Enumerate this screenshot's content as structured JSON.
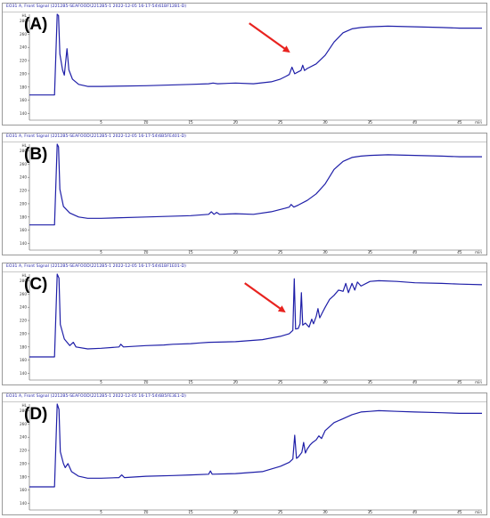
{
  "panels": [
    {
      "letter": "(A)",
      "header": "EO31 A, Front Signal (2212B5-SEAFOOD\\2212B5-1 2022-12-05 16-17-54\\61BF12B1-D)"
    },
    {
      "letter": "(B)",
      "header": "EO31 A, Front Signal (2212B5-SEAFOOD\\2212B5-1 2022-12-05 16-17-54\\6B5FE401-D)"
    },
    {
      "letter": "(C)",
      "header": "EO31 A, Front Signal (2212B5-SEAFOOD\\2212B5-1 2022-12-05 16-17-54\\61BF1E01-D)"
    },
    {
      "letter": "(D)",
      "header": "EO31 A, Front Signal (2212B5-SEAFOOD\\2212B5-1 2022-12-05 16-17-54\\6B5FE3E1-D)"
    }
  ],
  "colors": {
    "trace": "#1f1fa8",
    "arrow": "#e8231f",
    "axis": "#555555"
  },
  "chart_data": [
    {
      "type": "line",
      "panel": "(A)",
      "y_unit_label": "HL",
      "x_unit_label": "min",
      "xlim": [
        -3,
        47.5
      ],
      "ylim": [
        130,
        290
      ],
      "x_ticks": [
        5,
        10,
        15,
        20,
        25,
        30,
        35,
        40,
        45
      ],
      "y_ticks": [
        140,
        160,
        180,
        200,
        220,
        240,
        260,
        280
      ],
      "annotation": {
        "type": "arrow",
        "color": "red",
        "points_to_x": 26.3
      },
      "series": [
        {
          "points": [
            [
              -3.0,
              168
            ],
            [
              -0.2,
              168
            ],
            [
              0.1,
              290
            ],
            [
              0.25,
              288
            ],
            [
              0.4,
              230
            ],
            [
              0.7,
              206
            ],
            [
              0.9,
              198
            ],
            [
              1.2,
              238
            ],
            [
              1.4,
              206
            ],
            [
              1.8,
              192
            ],
            [
              2.5,
              184
            ],
            [
              3.5,
              181
            ],
            [
              5,
              181
            ],
            [
              10,
              182
            ],
            [
              15,
              184
            ],
            [
              17,
              185
            ],
            [
              17.5,
              186
            ],
            [
              18,
              185
            ],
            [
              20,
              186
            ],
            [
              22,
              185
            ],
            [
              24,
              188
            ],
            [
              25,
              192
            ],
            [
              25.6,
              196
            ],
            [
              26.0,
              199
            ],
            [
              26.3,
              210
            ],
            [
              26.6,
              200
            ],
            [
              27.0,
              203
            ],
            [
              27.3,
              205
            ],
            [
              27.5,
              213
            ],
            [
              27.7,
              205
            ],
            [
              28,
              208
            ],
            [
              29,
              215
            ],
            [
              30,
              228
            ],
            [
              31,
              248
            ],
            [
              32,
              262
            ],
            [
              33,
              268
            ],
            [
              34,
              270
            ],
            [
              35,
              271
            ],
            [
              37,
              272
            ],
            [
              40,
              271
            ],
            [
              43,
              270
            ],
            [
              45,
              269
            ],
            [
              47.5,
              269
            ]
          ]
        }
      ]
    },
    {
      "type": "line",
      "panel": "(B)",
      "y_unit_label": "HL",
      "x_unit_label": "min",
      "xlim": [
        -3,
        47.5
      ],
      "ylim": [
        130,
        290
      ],
      "x_ticks": [
        5,
        10,
        15,
        20,
        25,
        30,
        35,
        40,
        45
      ],
      "y_ticks": [
        140,
        160,
        180,
        200,
        220,
        240,
        260,
        280
      ],
      "series": [
        {
          "points": [
            [
              -3.0,
              168
            ],
            [
              -0.2,
              168
            ],
            [
              0.1,
              290
            ],
            [
              0.25,
              286
            ],
            [
              0.4,
              222
            ],
            [
              0.8,
              196
            ],
            [
              1.5,
              186
            ],
            [
              2.5,
              180
            ],
            [
              3.5,
              178
            ],
            [
              5,
              178
            ],
            [
              10,
              180
            ],
            [
              15,
              182
            ],
            [
              17,
              184
            ],
            [
              17.3,
              188
            ],
            [
              17.6,
              184
            ],
            [
              17.9,
              187
            ],
            [
              18.2,
              184
            ],
            [
              20,
              185
            ],
            [
              22,
              184
            ],
            [
              24,
              188
            ],
            [
              25.5,
              193
            ],
            [
              26,
              195
            ],
            [
              26.2,
              199
            ],
            [
              26.5,
              195
            ],
            [
              27,
              198
            ],
            [
              28,
              205
            ],
            [
              29,
              215
            ],
            [
              30,
              230
            ],
            [
              31,
              252
            ],
            [
              32,
              264
            ],
            [
              33,
              270
            ],
            [
              34,
              272
            ],
            [
              35,
              273
            ],
            [
              37,
              274
            ],
            [
              40,
              273
            ],
            [
              43,
              272
            ],
            [
              45,
              271
            ],
            [
              47.5,
              271
            ]
          ]
        }
      ]
    },
    {
      "type": "line",
      "panel": "(C)",
      "y_unit_label": "HL",
      "x_unit_label": "min",
      "xlim": [
        -3,
        47.5
      ],
      "ylim": [
        130,
        290
      ],
      "x_ticks": [
        5,
        10,
        15,
        20,
        25,
        30,
        35,
        40,
        45
      ],
      "y_ticks": [
        140,
        160,
        180,
        200,
        220,
        240,
        260,
        280
      ],
      "annotation": {
        "type": "arrow",
        "color": "red",
        "points_to_x": 25.8
      },
      "series": [
        {
          "points": [
            [
              -3.0,
              165
            ],
            [
              -0.2,
              165
            ],
            [
              0.1,
              290
            ],
            [
              0.3,
              284
            ],
            [
              0.45,
              214
            ],
            [
              0.9,
              192
            ],
            [
              1.5,
              182
            ],
            [
              1.9,
              187
            ],
            [
              2.2,
              180
            ],
            [
              3.5,
              177
            ],
            [
              5,
              178
            ],
            [
              7,
              180
            ],
            [
              7.2,
              184
            ],
            [
              7.5,
              180
            ],
            [
              10,
              182
            ],
            [
              12,
              183
            ],
            [
              13,
              184
            ],
            [
              15,
              185
            ],
            [
              16,
              186
            ],
            [
              17,
              187
            ],
            [
              20,
              188
            ],
            [
              23,
              191
            ],
            [
              25,
              196
            ],
            [
              26,
              200
            ],
            [
              26.4,
              205
            ],
            [
              26.55,
              283
            ],
            [
              26.7,
              207
            ],
            [
              27,
              208
            ],
            [
              27.2,
              215
            ],
            [
              27.35,
              262
            ],
            [
              27.5,
              213
            ],
            [
              27.8,
              216
            ],
            [
              28.2,
              210
            ],
            [
              28.5,
              222
            ],
            [
              28.7,
              215
            ],
            [
              29,
              226
            ],
            [
              29.2,
              238
            ],
            [
              29.4,
              224
            ],
            [
              29.7,
              232
            ],
            [
              30,
              240
            ],
            [
              30.5,
              252
            ],
            [
              31,
              258
            ],
            [
              31.5,
              266
            ],
            [
              32,
              264
            ],
            [
              32.3,
              276
            ],
            [
              32.6,
              262
            ],
            [
              33,
              276
            ],
            [
              33.3,
              266
            ],
            [
              33.6,
              278
            ],
            [
              34,
              272
            ],
            [
              35,
              279
            ],
            [
              36,
              280
            ],
            [
              38,
              279
            ],
            [
              40,
              277
            ],
            [
              43,
              276
            ],
            [
              45,
              275
            ],
            [
              47.5,
              274
            ]
          ]
        }
      ]
    },
    {
      "type": "line",
      "panel": "(D)",
      "y_unit_label": "HL",
      "x_unit_label": "min",
      "xlim": [
        -3,
        47.5
      ],
      "ylim": [
        130,
        290
      ],
      "x_ticks": [
        5,
        10,
        15,
        20,
        25,
        30,
        35,
        40,
        45
      ],
      "y_ticks": [
        140,
        160,
        180,
        200,
        220,
        240,
        260,
        280
      ],
      "series": [
        {
          "points": [
            [
              -3.0,
              165
            ],
            [
              -0.2,
              165
            ],
            [
              0.1,
              290
            ],
            [
              0.3,
              282
            ],
            [
              0.45,
              218
            ],
            [
              0.8,
              200
            ],
            [
              1.0,
              194
            ],
            [
              1.3,
              200
            ],
            [
              1.7,
              188
            ],
            [
              2.5,
              181
            ],
            [
              3.5,
              178
            ],
            [
              5,
              178
            ],
            [
              7,
              179
            ],
            [
              7.3,
              183
            ],
            [
              7.6,
              179
            ],
            [
              10,
              181
            ],
            [
              13,
              182
            ],
            [
              15,
              183
            ],
            [
              17,
              184
            ],
            [
              17.2,
              189
            ],
            [
              17.4,
              184
            ],
            [
              20,
              185
            ],
            [
              23,
              188
            ],
            [
              25,
              196
            ],
            [
              26,
              202
            ],
            [
              26.4,
              207
            ],
            [
              26.6,
              243
            ],
            [
              26.8,
              208
            ],
            [
              27,
              210
            ],
            [
              27.4,
              217
            ],
            [
              27.6,
              232
            ],
            [
              27.8,
              216
            ],
            [
              28,
              222
            ],
            [
              28.3,
              228
            ],
            [
              28.6,
              232
            ],
            [
              29,
              236
            ],
            [
              29.3,
              242
            ],
            [
              29.6,
              238
            ],
            [
              30,
              250
            ],
            [
              31,
              262
            ],
            [
              32,
              268
            ],
            [
              33,
              274
            ],
            [
              34,
              278
            ],
            [
              35,
              279
            ],
            [
              36,
              280
            ],
            [
              38,
              279
            ],
            [
              40,
              278
            ],
            [
              43,
              277
            ],
            [
              45,
              276
            ],
            [
              47.5,
              276
            ]
          ]
        }
      ]
    }
  ]
}
